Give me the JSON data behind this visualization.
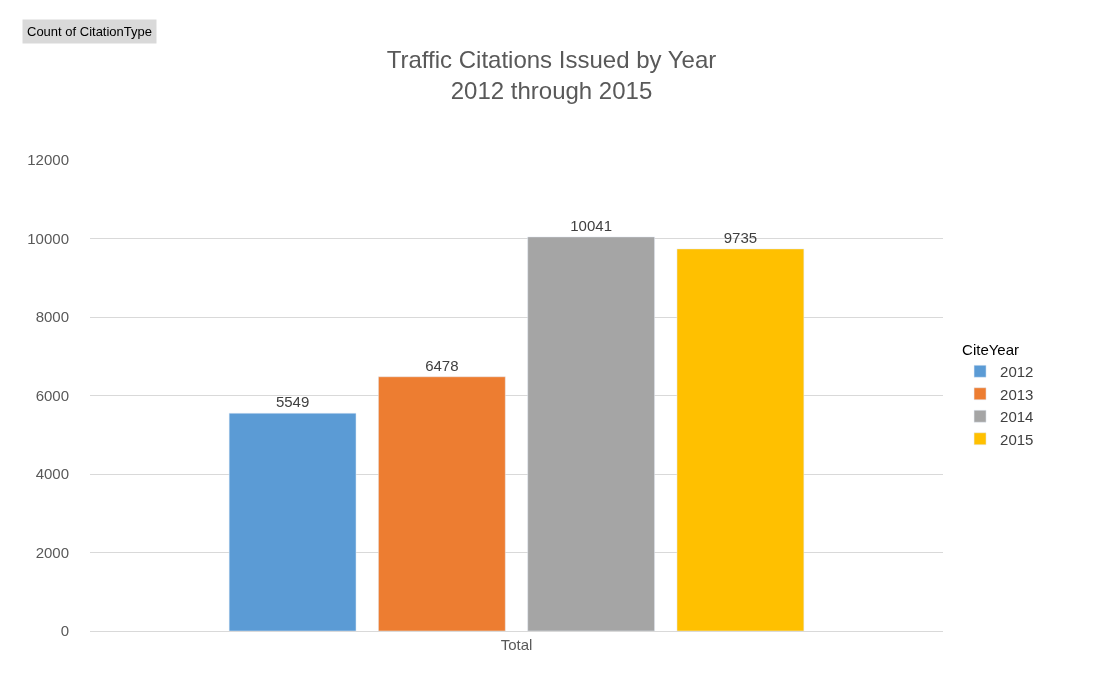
{
  "chart_data": {
    "type": "bar",
    "title": "Traffic Citations Issued by Year\n2012 through 2015",
    "categories": [
      "Total"
    ],
    "series": [
      {
        "name": "2012",
        "color": "#5b9bd5",
        "values": [
          5549
        ]
      },
      {
        "name": "2013",
        "color": "#ed7d31",
        "values": [
          6478
        ]
      },
      {
        "name": "2014",
        "color": "#a5a5a5",
        "values": [
          10041
        ]
      },
      {
        "name": "2015",
        "color": "#ffc000",
        "values": [
          9735
        ]
      }
    ],
    "ylim": [
      0,
      12000
    ],
    "yticks": [
      0,
      2000,
      4000,
      6000,
      8000,
      10000,
      12000
    ],
    "grid": "y",
    "legend": "right",
    "legend_title": "CiteYear",
    "data_labels": true,
    "annotations": [
      "Count of CitationType"
    ]
  }
}
